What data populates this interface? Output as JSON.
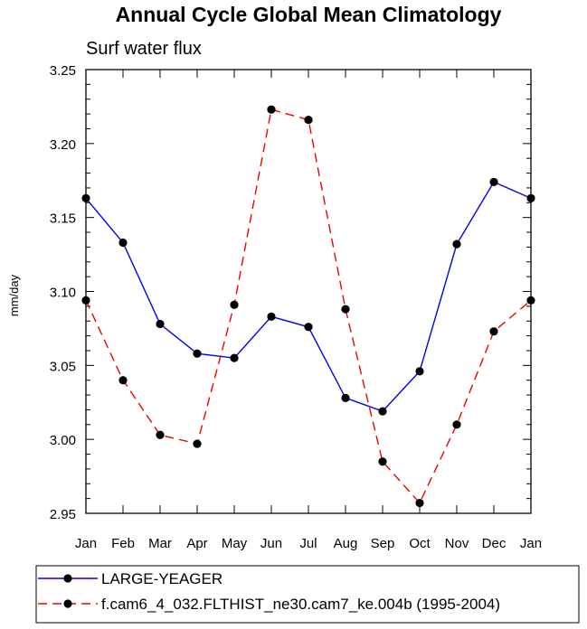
{
  "chart_data": {
    "type": "line",
    "title": "Annual Cycle Global Mean Climatology",
    "subtitle": "Surf water flux",
    "xlabel": "",
    "ylabel": "mm/day",
    "categories": [
      "Jan",
      "Feb",
      "Mar",
      "Apr",
      "May",
      "Jun",
      "Jul",
      "Aug",
      "Sep",
      "Oct",
      "Nov",
      "Dec",
      "Jan"
    ],
    "ylim": [
      2.95,
      3.25
    ],
    "yticks": [
      "2.95",
      "3.00",
      "3.05",
      "3.10",
      "3.15",
      "3.20",
      "3.25"
    ],
    "legend_position": "bottom",
    "series": [
      {
        "name": "LARGE-YEAGER",
        "color": "#0000ee",
        "style": "solid",
        "values": [
          3.163,
          3.133,
          3.078,
          3.058,
          3.055,
          3.083,
          3.076,
          3.028,
          3.019,
          3.046,
          3.132,
          3.174,
          3.163
        ]
      },
      {
        "name": "f.cam6_4_032.FLTHIST_ne30.cam7_ke.004b (1995-2004)",
        "color": "#ee0000",
        "style": "dashed",
        "values": [
          3.094,
          3.04,
          3.003,
          2.997,
          3.091,
          3.223,
          3.216,
          3.088,
          2.985,
          2.957,
          3.01,
          3.073,
          3.094
        ]
      }
    ]
  }
}
